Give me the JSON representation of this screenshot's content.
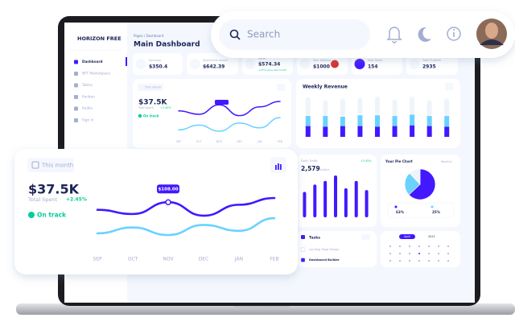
{
  "sidebar": {
    "brand": "HORIZON FREE",
    "menu": [
      "Dashboard",
      "NFT Marketplace",
      "Tables",
      "Kanban",
      "Profile",
      "Sign In"
    ]
  },
  "header": {
    "breadcrumb": "Pages / Dashboard",
    "title": "Main Dashboard"
  },
  "search": {
    "placeholder": "Search"
  },
  "stats": [
    {
      "label": "Earnings",
      "value": "$350.4"
    },
    {
      "label": "Spend this month",
      "value": "$642.39"
    },
    {
      "label": "Sales",
      "value": "$574.34",
      "note": "+23% since last month"
    },
    {
      "label": "Your balance",
      "value": "$1000"
    },
    {
      "label": "New Tasks",
      "value": "154"
    },
    {
      "label": "Total Projects",
      "value": "2935"
    }
  ],
  "spend_card": {
    "button": "This month",
    "total": "$37.5K",
    "total_label": "Total Spent",
    "change": "+2.45%",
    "status": "On track",
    "tooltip": "$108.00"
  },
  "traffic_card": {
    "title": "Daily Traffic",
    "total": "2,579",
    "unit": "Visitors",
    "change": "+2.45%"
  },
  "pie_card": {
    "title": "Your Pie Chart",
    "period": "Monthly"
  },
  "tasks": {
    "title": "Tasks",
    "items": [
      "Landing Page Design",
      "Dashboard Builder"
    ]
  },
  "calendar": {
    "month": "April",
    "year": "2021"
  },
  "chart_data": [
    {
      "type": "line",
      "categories": [
        "SEP",
        "OCT",
        "NOV",
        "DEC",
        "JAN",
        "FEB"
      ],
      "series": [
        {
          "color": "#4318ff",
          "values": [
            99,
            94,
            108,
            92,
            105,
            113
          ]
        },
        {
          "color": "#6ad2ff",
          "values": [
            71,
            78,
            69,
            81,
            74,
            89
          ]
        }
      ]
    },
    {
      "type": "bar",
      "title": "Weekly Revenue",
      "stacked": true,
      "categories": [
        null,
        null,
        null,
        null,
        null,
        null,
        null,
        null,
        null
      ],
      "series": [
        {
          "color": "#4318ff",
          "values": [
            15,
            14,
            15,
            15,
            14,
            15,
            16,
            15,
            14
          ]
        },
        {
          "color": "#6ad2ff",
          "values": [
            14,
            15,
            13,
            15,
            16,
            14,
            15,
            14,
            15
          ]
        },
        {
          "color": "#eff4fb",
          "values": [
            26,
            22,
            25,
            24,
            26,
            23,
            25,
            22,
            24
          ]
        }
      ]
    },
    {
      "type": "bar",
      "categories": [
        null,
        null,
        null,
        null,
        null,
        null,
        null
      ],
      "values": [
        28,
        36,
        40,
        46,
        32,
        40,
        30
      ],
      "color": "#4318ff"
    },
    {
      "type": "pie",
      "values": [
        63,
        25,
        12
      ],
      "value_labels": [
        "63%",
        "25%",
        null
      ],
      "colors": [
        "#4318ff",
        "#6ad2ff",
        "#eff4fb"
      ]
    }
  ]
}
